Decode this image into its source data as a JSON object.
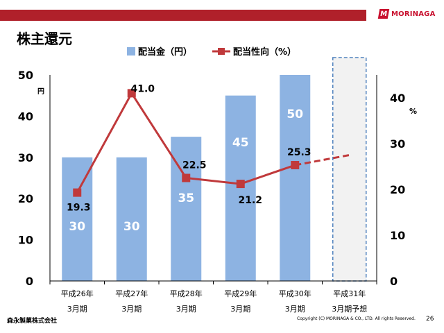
{
  "header": {
    "logo_text": "MORINAGA",
    "logo_mark": "M"
  },
  "page_title": "株主還元",
  "footer": {
    "company": "森永製菓株式会社",
    "copyright": "Copyright (C) MORINAGA & CO., LTD. All rights Reserved.",
    "page_number": "26"
  },
  "colors": {
    "bar": "#8db3e2",
    "line": "#c0393b",
    "forecast_bg": "#f2f2f2",
    "forecast_border": "#4f81bd",
    "top_bar": "#b0202a"
  },
  "chart_data": {
    "type": "bar",
    "categories": [
      [
        "平成26年",
        "3月期"
      ],
      [
        "平成27年",
        "3月期"
      ],
      [
        "平成28年",
        "3月期"
      ],
      [
        "平成29年",
        "3月期"
      ],
      [
        "平成30年",
        "3月期"
      ],
      [
        "平成31年",
        "3月期予想"
      ]
    ],
    "series": [
      {
        "name": "配当金（円）",
        "type": "bar",
        "axis": "left",
        "values": [
          30,
          30,
          35,
          45,
          50,
          null
        ],
        "labels": [
          "30",
          "30",
          "35",
          "45",
          "50",
          ""
        ]
      },
      {
        "name": "配当性向（%）",
        "type": "line",
        "axis": "right",
        "values": [
          19.3,
          41.0,
          22.5,
          21.2,
          25.3,
          27.5
        ],
        "labels": [
          "19.3",
          "41.0",
          "22.5",
          "21.2",
          "25.3",
          ""
        ],
        "forecast_from_index": 4
      }
    ],
    "y_left": {
      "unit": "円",
      "ylim": [
        0,
        50
      ],
      "ticks": [
        "0",
        "10",
        "20",
        "30",
        "40",
        "50"
      ]
    },
    "y_right": {
      "unit": "%",
      "ylim": [
        0,
        45
      ],
      "ticks": [
        "0",
        "10",
        "20",
        "30",
        "40"
      ]
    },
    "forecast_index": 5,
    "legend_position": "top"
  }
}
